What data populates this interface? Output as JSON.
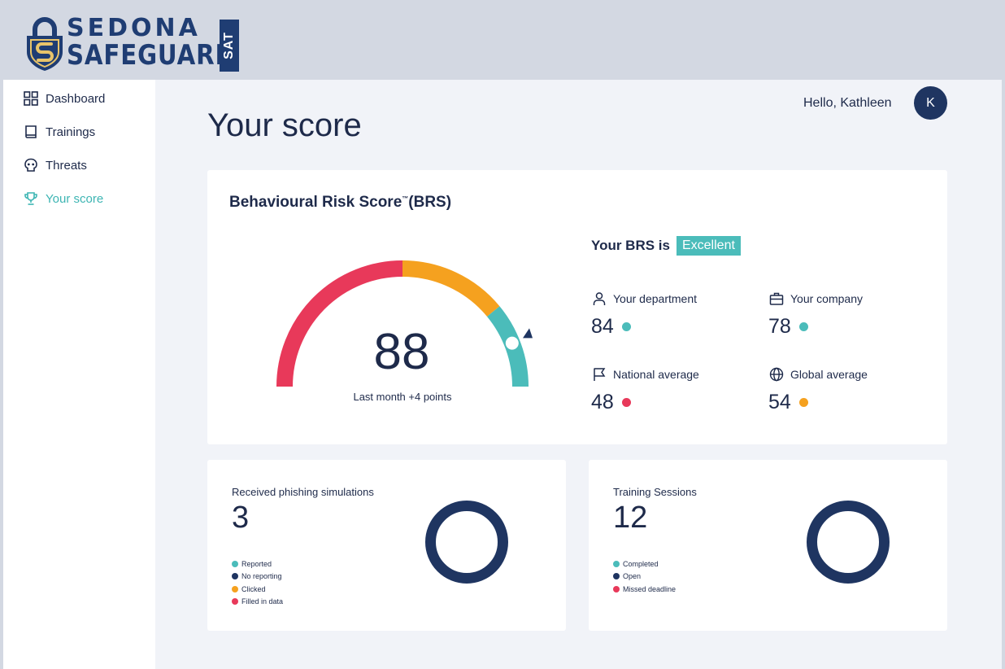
{
  "brand": {
    "line1": "SEDONA",
    "line2": "SAFEGUARD",
    "tag": "SAT",
    "colors": {
      "navy": "#1f3d73",
      "gold": "#e8c46a"
    }
  },
  "sidebar": {
    "items": [
      {
        "label": "Dashboard",
        "icon": "grid-icon"
      },
      {
        "label": "Trainings",
        "icon": "book-icon"
      },
      {
        "label": "Threats",
        "icon": "skull-icon"
      },
      {
        "label": "Your score",
        "icon": "trophy-icon",
        "active": true
      }
    ]
  },
  "header": {
    "greeting": "Hello, Kathleen",
    "avatar_initial": "K"
  },
  "page": {
    "title": "Your score"
  },
  "brs": {
    "title": "Behavioural Risk Score",
    "trademark": "™",
    "title_suffix": "(BRS)",
    "score": "88",
    "score_value": 88,
    "gauge_scale": [
      0,
      100
    ],
    "subtitle": "Last month +4 points",
    "status_prefix": "Your BRS is",
    "status": "Excellent",
    "gauge_colors": {
      "red": "#e8395a",
      "orange": "#f5a11f",
      "teal": "#4bbcba"
    },
    "stats": [
      {
        "label": "Your department",
        "value": "84",
        "icon": "user-icon",
        "color": "#4bbcba"
      },
      {
        "label": "Your company",
        "value": "78",
        "icon": "briefcase-icon",
        "color": "#4bbcba"
      },
      {
        "label": "National average",
        "value": "48",
        "icon": "flag-icon",
        "color": "#e8395a"
      },
      {
        "label": "Global average",
        "value": "54",
        "icon": "globe-icon",
        "color": "#f5a11f"
      }
    ]
  },
  "phishing": {
    "title": "Received phishing simulations",
    "value": "3",
    "legend": [
      {
        "label": "Reported",
        "color": "#4bbcba"
      },
      {
        "label": "No reporting",
        "color": "#1f3561"
      },
      {
        "label": "Clicked",
        "color": "#f5a11f"
      },
      {
        "label": "Filled in data",
        "color": "#e8395a"
      }
    ]
  },
  "training": {
    "title": "Training Sessions",
    "value": "12",
    "legend": [
      {
        "label": "Completed",
        "color": "#4bbcba"
      },
      {
        "label": "Open",
        "color": "#1f3561"
      },
      {
        "label": "Missed deadline",
        "color": "#e8395a"
      }
    ]
  }
}
